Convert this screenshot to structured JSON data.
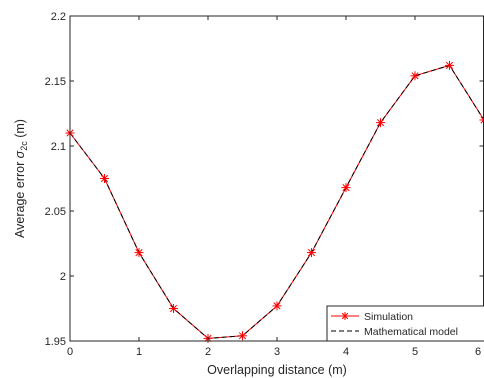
{
  "chart_data": {
    "type": "line",
    "title": "",
    "xlabel": "Overlapping distance (m)",
    "ylabel_main": "Average error ",
    "ylabel_sigma": "σ",
    "ylabel_sub": "2c",
    "ylabel_unit": " (m)",
    "xlim": [
      0,
      6
    ],
    "ylim": [
      1.95,
      2.2
    ],
    "x_ticks": [
      "0",
      "1",
      "2",
      "3",
      "4",
      "5",
      "6"
    ],
    "y_ticks": [
      "1.95",
      "2",
      "2.05",
      "2.1",
      "2.15",
      "2.2"
    ],
    "grid": false,
    "legend_position": "bottom-right",
    "x": [
      0,
      0.5,
      1,
      1.5,
      2,
      2.5,
      3,
      3.5,
      4,
      4.5,
      5,
      5.5,
      6
    ],
    "series": [
      {
        "name": "Simulation",
        "color": "#ff0000",
        "marker": "asterisk",
        "line_style": "solid",
        "values": [
          2.11,
          2.075,
          2.018,
          1.975,
          1.952,
          1.954,
          1.977,
          2.018,
          2.068,
          2.118,
          2.154,
          2.162,
          2.12
        ]
      },
      {
        "name": "Mathematical model",
        "color": "#000000",
        "marker": "none",
        "line_style": "dashed",
        "values": [
          2.11,
          2.075,
          2.018,
          1.975,
          1.952,
          1.954,
          1.977,
          2.018,
          2.068,
          2.118,
          2.154,
          2.162,
          2.12
        ]
      }
    ]
  }
}
